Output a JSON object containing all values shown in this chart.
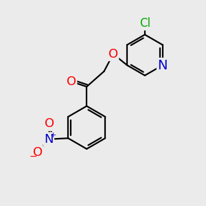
{
  "bg_color": "#ebebeb",
  "bond_color": "#000000",
  "atom_colors": {
    "O": "#ff0000",
    "N_pyridine": "#0000cc",
    "N_nitro": "#0000cc",
    "Cl": "#00aa00",
    "O_nitro": "#ff0000"
  },
  "font_size_atoms": 13,
  "font_size_cl": 12,
  "line_width": 1.6,
  "fig_size": [
    3.0,
    3.0
  ],
  "dpi": 100
}
